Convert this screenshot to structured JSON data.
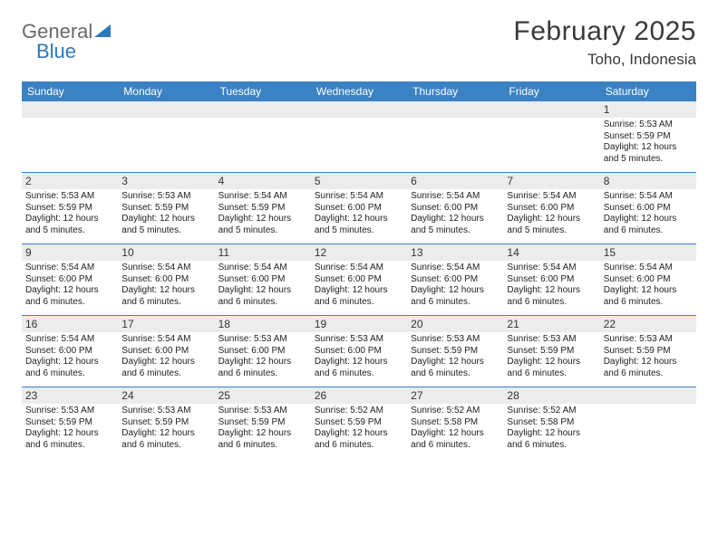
{
  "logo": {
    "word1": "General",
    "word2": "Blue"
  },
  "header": {
    "month_title": "February 2025",
    "location": "Toho, Indonesia"
  },
  "colors": {
    "header_bar": "#3a82c4",
    "daynum_bg": "#ececec",
    "week_divider": "#3a82c4",
    "text": "#222222",
    "logo_gray": "#6a6a6a",
    "logo_blue": "#2f77bb"
  },
  "weekdays": [
    "Sunday",
    "Monday",
    "Tuesday",
    "Wednesday",
    "Thursday",
    "Friday",
    "Saturday"
  ],
  "calendar": {
    "year": 2025,
    "month": 2,
    "first_weekday_index": 6,
    "days": [
      {
        "n": 1,
        "sunrise": "5:53 AM",
        "sunset": "5:59 PM",
        "daylight": "12 hours and 5 minutes."
      },
      {
        "n": 2,
        "sunrise": "5:53 AM",
        "sunset": "5:59 PM",
        "daylight": "12 hours and 5 minutes."
      },
      {
        "n": 3,
        "sunrise": "5:53 AM",
        "sunset": "5:59 PM",
        "daylight": "12 hours and 5 minutes."
      },
      {
        "n": 4,
        "sunrise": "5:54 AM",
        "sunset": "5:59 PM",
        "daylight": "12 hours and 5 minutes."
      },
      {
        "n": 5,
        "sunrise": "5:54 AM",
        "sunset": "6:00 PM",
        "daylight": "12 hours and 5 minutes."
      },
      {
        "n": 6,
        "sunrise": "5:54 AM",
        "sunset": "6:00 PM",
        "daylight": "12 hours and 5 minutes."
      },
      {
        "n": 7,
        "sunrise": "5:54 AM",
        "sunset": "6:00 PM",
        "daylight": "12 hours and 5 minutes."
      },
      {
        "n": 8,
        "sunrise": "5:54 AM",
        "sunset": "6:00 PM",
        "daylight": "12 hours and 6 minutes."
      },
      {
        "n": 9,
        "sunrise": "5:54 AM",
        "sunset": "6:00 PM",
        "daylight": "12 hours and 6 minutes."
      },
      {
        "n": 10,
        "sunrise": "5:54 AM",
        "sunset": "6:00 PM",
        "daylight": "12 hours and 6 minutes."
      },
      {
        "n": 11,
        "sunrise": "5:54 AM",
        "sunset": "6:00 PM",
        "daylight": "12 hours and 6 minutes."
      },
      {
        "n": 12,
        "sunrise": "5:54 AM",
        "sunset": "6:00 PM",
        "daylight": "12 hours and 6 minutes."
      },
      {
        "n": 13,
        "sunrise": "5:54 AM",
        "sunset": "6:00 PM",
        "daylight": "12 hours and 6 minutes."
      },
      {
        "n": 14,
        "sunrise": "5:54 AM",
        "sunset": "6:00 PM",
        "daylight": "12 hours and 6 minutes."
      },
      {
        "n": 15,
        "sunrise": "5:54 AM",
        "sunset": "6:00 PM",
        "daylight": "12 hours and 6 minutes."
      },
      {
        "n": 16,
        "sunrise": "5:54 AM",
        "sunset": "6:00 PM",
        "daylight": "12 hours and 6 minutes."
      },
      {
        "n": 17,
        "sunrise": "5:54 AM",
        "sunset": "6:00 PM",
        "daylight": "12 hours and 6 minutes."
      },
      {
        "n": 18,
        "sunrise": "5:53 AM",
        "sunset": "6:00 PM",
        "daylight": "12 hours and 6 minutes."
      },
      {
        "n": 19,
        "sunrise": "5:53 AM",
        "sunset": "6:00 PM",
        "daylight": "12 hours and 6 minutes."
      },
      {
        "n": 20,
        "sunrise": "5:53 AM",
        "sunset": "5:59 PM",
        "daylight": "12 hours and 6 minutes."
      },
      {
        "n": 21,
        "sunrise": "5:53 AM",
        "sunset": "5:59 PM",
        "daylight": "12 hours and 6 minutes."
      },
      {
        "n": 22,
        "sunrise": "5:53 AM",
        "sunset": "5:59 PM",
        "daylight": "12 hours and 6 minutes."
      },
      {
        "n": 23,
        "sunrise": "5:53 AM",
        "sunset": "5:59 PM",
        "daylight": "12 hours and 6 minutes."
      },
      {
        "n": 24,
        "sunrise": "5:53 AM",
        "sunset": "5:59 PM",
        "daylight": "12 hours and 6 minutes."
      },
      {
        "n": 25,
        "sunrise": "5:53 AM",
        "sunset": "5:59 PM",
        "daylight": "12 hours and 6 minutes."
      },
      {
        "n": 26,
        "sunrise": "5:52 AM",
        "sunset": "5:59 PM",
        "daylight": "12 hours and 6 minutes."
      },
      {
        "n": 27,
        "sunrise": "5:52 AM",
        "sunset": "5:58 PM",
        "daylight": "12 hours and 6 minutes."
      },
      {
        "n": 28,
        "sunrise": "5:52 AM",
        "sunset": "5:58 PM",
        "daylight": "12 hours and 6 minutes."
      }
    ]
  },
  "labels": {
    "sunrise_prefix": "Sunrise: ",
    "sunset_prefix": "Sunset: ",
    "daylight_prefix": "Daylight: "
  }
}
